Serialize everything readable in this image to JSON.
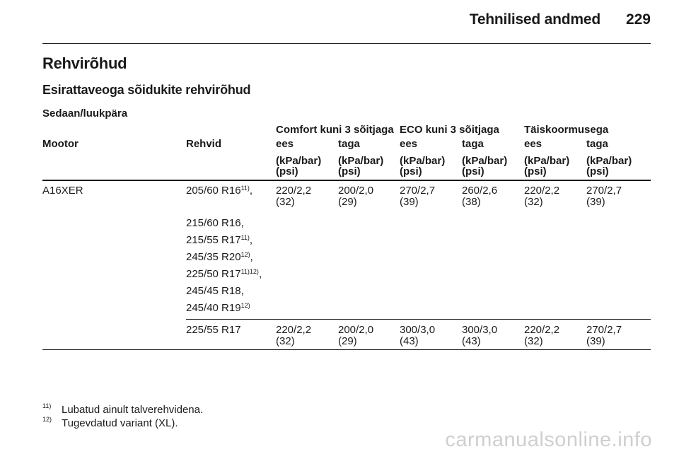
{
  "header": {
    "title": "Tehnilised andmed",
    "page_number": "229"
  },
  "section_title": "Rehvirõhud",
  "subsection_title": "Esirattaveoga sõidukite rehvirõhud",
  "body_type": "Sedaan/luukpära",
  "table": {
    "groups": [
      "Comfort kuni 3 sõitjaga",
      "ECO kuni 3 sõitjaga",
      "Täiskoormusega"
    ],
    "col_engine": "Mootor",
    "col_tyres": "Rehvid",
    "axle_labels": [
      "ees",
      "taga",
      "ees",
      "taga",
      "ees",
      "taga"
    ],
    "unit_line1": "(kPa/bar)",
    "unit_line2": "(psi)",
    "engine": "A16XER",
    "row1": {
      "tyre_base": "205/60 R16",
      "tyre_sup": "11)",
      "tyre_tail": ",",
      "values": [
        [
          "220/2,2",
          "(32)"
        ],
        [
          "200/2,0",
          "(29)"
        ],
        [
          "270/2,7",
          "(39)"
        ],
        [
          "260/2,6",
          "(38)"
        ],
        [
          "220/2,2",
          "(32)"
        ],
        [
          "270/2,7",
          "(39)"
        ]
      ]
    },
    "tyre_list": [
      {
        "base": "215/60 R16,",
        "sup": "",
        "tail": ""
      },
      {
        "base": "215/55 R17",
        "sup": "11)",
        "tail": ","
      },
      {
        "base": "245/35 R20",
        "sup": "12)",
        "tail": ","
      },
      {
        "base": "225/50 R17",
        "sup": "11)12)",
        "tail": ","
      },
      {
        "base": "245/45 R18,",
        "sup": "",
        "tail": ""
      },
      {
        "base": "245/40 R19",
        "sup": "12)",
        "tail": ""
      }
    ],
    "row2": {
      "tyre": "225/55 R17",
      "values": [
        [
          "220/2,2",
          "(32)"
        ],
        [
          "200/2,0",
          "(29)"
        ],
        [
          "300/3,0",
          "(43)"
        ],
        [
          "300/3,0",
          "(43)"
        ],
        [
          "220/2,2",
          "(32)"
        ],
        [
          "270/2,7",
          "(39)"
        ]
      ]
    }
  },
  "footnotes": [
    {
      "mark": "11)",
      "text": "Lubatud ainult talverehvidena."
    },
    {
      "mark": "12)",
      "text": "Tugevdatud variant (XL)."
    }
  ],
  "watermark": "carmanualsonline.info"
}
